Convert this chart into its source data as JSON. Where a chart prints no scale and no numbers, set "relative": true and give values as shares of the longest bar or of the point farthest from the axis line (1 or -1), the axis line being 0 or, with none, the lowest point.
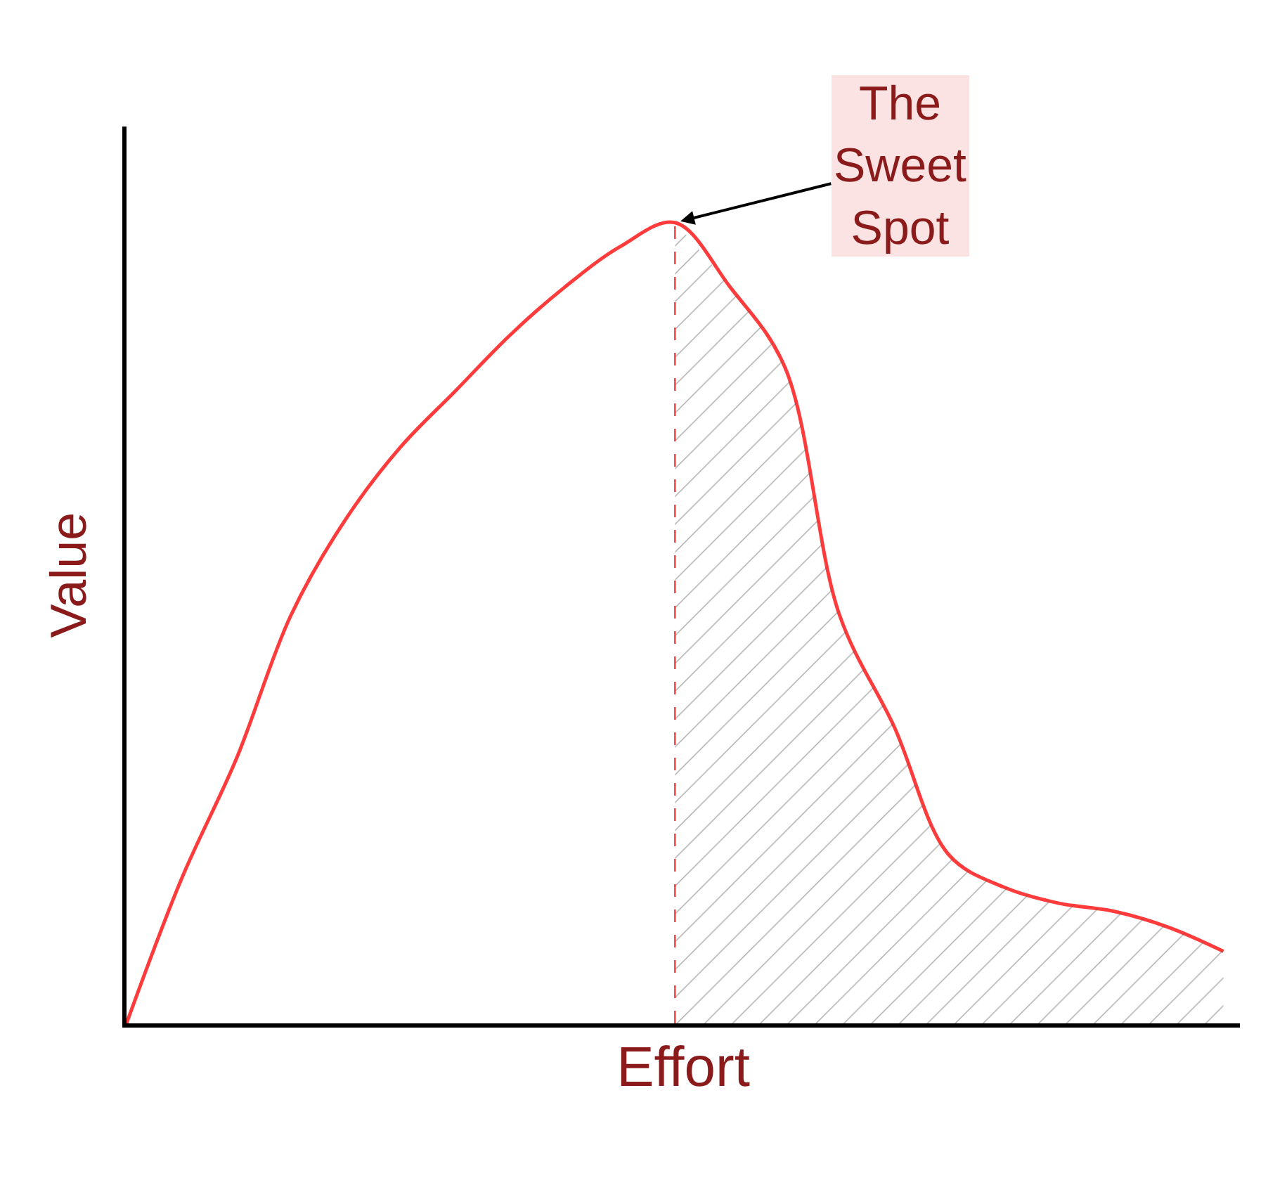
{
  "chart_data": {
    "type": "line",
    "relative": true,
    "xlabel": "Effort",
    "ylabel": "Value",
    "categories": [
      null,
      null,
      null,
      null,
      null,
      null,
      null,
      null,
      null,
      null,
      null,
      null,
      null,
      null,
      null,
      null,
      null,
      null,
      null,
      null,
      null
    ],
    "series": [
      {
        "color": "#ff3b3b",
        "values": [
          0,
          0.18,
          0.33,
          0.51,
          0.63,
          0.72,
          0.79,
          0.86,
          0.92,
          0.97,
          1,
          0.92,
          0.82,
          0.51,
          0.37,
          0.21,
          0.17,
          0.15,
          0.14,
          0.12,
          0.09
        ]
      },
      {
        "type": "area",
        "color": "#555555",
        "values": [
          null,
          null,
          null,
          null,
          null,
          null,
          null,
          null,
          null,
          null,
          1,
          0.92,
          0.82,
          0.51,
          0.37,
          0.21,
          0.17,
          0.15,
          0.14,
          0.12,
          0.09
        ]
      }
    ],
    "annotations": [
      "The\nSweet\nSpot"
    ]
  }
}
